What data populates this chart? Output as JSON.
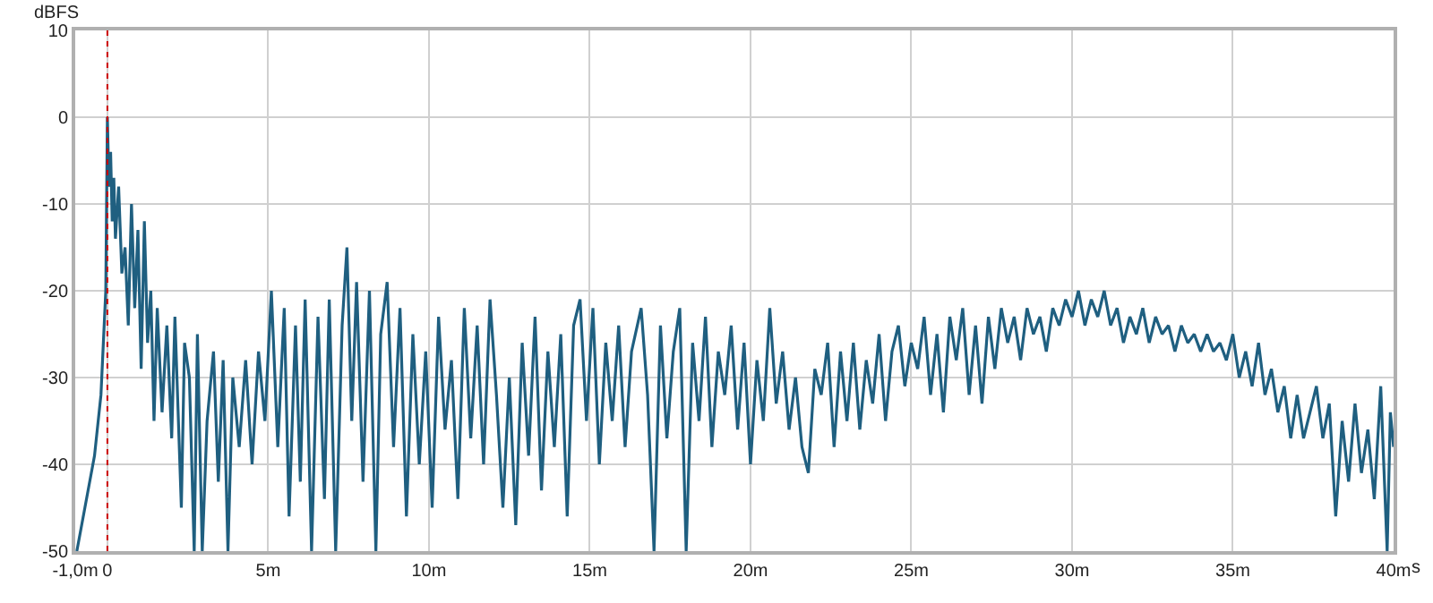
{
  "chart_data": {
    "type": "line",
    "xlabel": "s",
    "ylabel": "dBFS",
    "xlim": [
      -1,
      40
    ],
    "ylim": [
      -50,
      10
    ],
    "xticks": [
      {
        "value": -1,
        "label": "-1,0m"
      },
      0,
      {
        "value": 5,
        "label": "5m"
      },
      {
        "value": 10,
        "label": "10m"
      },
      {
        "value": 15,
        "label": "15m"
      },
      {
        "value": 20,
        "label": "20m"
      },
      {
        "value": 25,
        "label": "25m"
      },
      {
        "value": 30,
        "label": "30m"
      },
      {
        "value": 35,
        "label": "35m"
      },
      {
        "value": 40,
        "label": "40m"
      }
    ],
    "yticks": [
      10,
      0,
      -10,
      -20,
      -30,
      -40,
      -50
    ],
    "grid": true,
    "marker": "none",
    "line_style": "solid",
    "ref_lines": [
      {
        "axis": "x",
        "value": 0,
        "color": "#cc0000",
        "line_style": "dotted"
      }
    ],
    "series": [
      {
        "color": "#1f5f80",
        "x": [
          -0.95,
          -0.7,
          -0.4,
          -0.2,
          -0.05,
          0,
          0.05,
          0.1,
          0.15,
          0.2,
          0.25,
          0.35,
          0.45,
          0.55,
          0.65,
          0.75,
          0.85,
          0.95,
          1.05,
          1.15,
          1.25,
          1.35,
          1.45,
          1.55,
          1.7,
          1.85,
          2.0,
          2.1,
          2.3,
          2.4,
          2.55,
          2.7,
          2.8,
          2.95,
          3.1,
          3.3,
          3.45,
          3.6,
          3.75,
          3.9,
          4.1,
          4.3,
          4.5,
          4.7,
          4.9,
          5.1,
          5.3,
          5.5,
          5.65,
          5.85,
          6.0,
          6.15,
          6.35,
          6.55,
          6.75,
          6.9,
          7.1,
          7.3,
          7.45,
          7.6,
          7.75,
          7.95,
          8.15,
          8.35,
          8.5,
          8.7,
          8.9,
          9.1,
          9.3,
          9.5,
          9.7,
          9.9,
          10.1,
          10.3,
          10.5,
          10.7,
          10.9,
          11.1,
          11.3,
          11.5,
          11.7,
          11.9,
          12.1,
          12.3,
          12.5,
          12.7,
          12.9,
          13.1,
          13.3,
          13.5,
          13.7,
          13.9,
          14.1,
          14.3,
          14.5,
          14.7,
          14.9,
          15.1,
          15.3,
          15.5,
          15.7,
          15.9,
          16.1,
          16.3,
          16.6,
          16.8,
          17.0,
          17.2,
          17.4,
          17.6,
          17.8,
          18.0,
          18.2,
          18.4,
          18.6,
          18.8,
          19.0,
          19.2,
          19.4,
          19.6,
          19.8,
          20.0,
          20.2,
          20.4,
          20.6,
          20.8,
          21.0,
          21.2,
          21.4,
          21.6,
          21.8,
          22.0,
          22.2,
          22.4,
          22.6,
          22.8,
          23.0,
          23.2,
          23.4,
          23.6,
          23.8,
          24.0,
          24.2,
          24.4,
          24.6,
          24.8,
          25.0,
          25.2,
          25.4,
          25.6,
          25.8,
          26.0,
          26.2,
          26.4,
          26.6,
          26.8,
          27.0,
          27.2,
          27.4,
          27.6,
          27.8,
          28.0,
          28.2,
          28.4,
          28.6,
          28.8,
          29.0,
          29.2,
          29.4,
          29.6,
          29.8,
          30.0,
          30.2,
          30.4,
          30.6,
          30.8,
          31.0,
          31.2,
          31.4,
          31.6,
          31.8,
          32.0,
          32.2,
          32.4,
          32.6,
          32.8,
          33.0,
          33.2,
          33.4,
          33.6,
          33.8,
          34.0,
          34.2,
          34.4,
          34.6,
          34.8,
          35.0,
          35.2,
          35.4,
          35.6,
          35.8,
          36.0,
          36.2,
          36.4,
          36.6,
          36.8,
          37.0,
          37.2,
          37.4,
          37.6,
          37.8,
          38.0,
          38.2,
          38.4,
          38.6,
          38.8,
          39.0,
          39.2,
          39.4,
          39.6,
          39.8,
          39.9,
          40.0
        ],
        "values": [
          -50,
          -45,
          -39,
          -32,
          -20,
          0,
          -8,
          -4,
          -12,
          -7,
          -14,
          -8,
          -18,
          -15,
          -24,
          -10,
          -22,
          -13,
          -29,
          -12,
          -26,
          -20,
          -35,
          -22,
          -34,
          -24,
          -37,
          -23,
          -45,
          -26,
          -30,
          -50,
          -25,
          -50,
          -35,
          -27,
          -42,
          -28,
          -50,
          -30,
          -38,
          -28,
          -40,
          -27,
          -35,
          -20,
          -38,
          -22,
          -46,
          -24,
          -42,
          -21,
          -50,
          -23,
          -44,
          -21,
          -50,
          -24,
          -15,
          -35,
          -19,
          -42,
          -20,
          -50,
          -25,
          -19,
          -38,
          -22,
          -46,
          -25,
          -40,
          -27,
          -45,
          -23,
          -36,
          -28,
          -44,
          -22,
          -37,
          -24,
          -40,
          -21,
          -32,
          -45,
          -30,
          -47,
          -26,
          -39,
          -23,
          -43,
          -27,
          -38,
          -25,
          -46,
          -24,
          -21,
          -35,
          -22,
          -40,
          -26,
          -35,
          -24,
          -38,
          -27,
          -22,
          -32,
          -50,
          -24,
          -37,
          -27,
          -22,
          -50,
          -26,
          -35,
          -23,
          -38,
          -27,
          -32,
          -24,
          -36,
          -26,
          -40,
          -28,
          -35,
          -22,
          -33,
          -27,
          -36,
          -30,
          -38,
          -41,
          -29,
          -32,
          -26,
          -38,
          -27,
          -35,
          -26,
          -36,
          -28,
          -33,
          -25,
          -35,
          -27,
          -24,
          -31,
          -26,
          -29,
          -23,
          -32,
          -25,
          -34,
          -23,
          -28,
          -22,
          -32,
          -24,
          -33,
          -23,
          -29,
          -22,
          -26,
          -23,
          -28,
          -22,
          -25,
          -23,
          -27,
          -22,
          -24,
          -21,
          -23,
          -20,
          -24,
          -21,
          -23,
          -20,
          -24,
          -22,
          -26,
          -23,
          -25,
          -22,
          -26,
          -23,
          -25,
          -24,
          -27,
          -24,
          -26,
          -25,
          -27,
          -25,
          -27,
          -26,
          -28,
          -25,
          -30,
          -27,
          -31,
          -26,
          -32,
          -29,
          -34,
          -31,
          -37,
          -32,
          -37,
          -34,
          -31,
          -37,
          -33,
          -46,
          -35,
          -42,
          -33,
          -41,
          -36,
          -44,
          -31,
          -50,
          -34,
          -38
        ]
      }
    ]
  }
}
